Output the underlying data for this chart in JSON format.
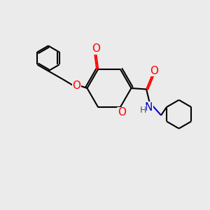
{
  "background_color": "#EBEBEB",
  "bond_color": "#000000",
  "oxygen_color": "#FF0000",
  "nitrogen_color": "#0000CD",
  "bond_width": 1.5,
  "fig_size": [
    3.0,
    3.0
  ],
  "dpi": 100,
  "xlim": [
    0,
    10
  ],
  "ylim": [
    0,
    10
  ]
}
